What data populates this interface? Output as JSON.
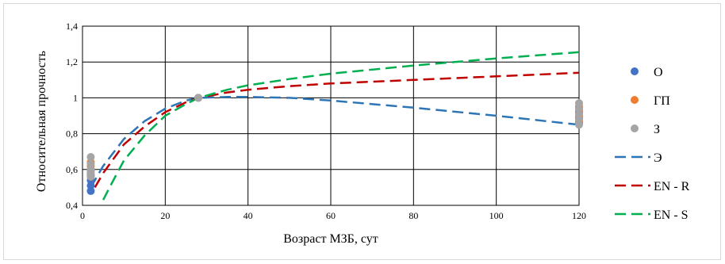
{
  "chart_data": {
    "type": "scatter",
    "xlabel": "Возраст МЗБ, сут",
    "ylabel": "Относительная прочность",
    "xlim": [
      0,
      120
    ],
    "ylim": [
      0.4,
      1.4
    ],
    "x_ticks": [
      "0",
      "20",
      "40",
      "60",
      "80",
      "100",
      "120"
    ],
    "y_ticks": [
      "0,4",
      "0,6",
      "0,8",
      "1",
      "1,2",
      "1,4"
    ],
    "grid": true,
    "legend_position": "right",
    "series": [
      {
        "name": "О",
        "kind": "points",
        "color": "#4472C4",
        "points": [
          [
            2,
            0.48
          ],
          [
            2,
            0.51
          ],
          [
            2,
            0.54
          ],
          [
            2,
            0.57
          ],
          [
            2,
            0.6
          ],
          [
            28,
            1.0
          ],
          [
            120,
            0.86
          ],
          [
            120,
            0.89
          ],
          [
            120,
            0.92
          ],
          [
            120,
            0.95
          ]
        ]
      },
      {
        "name": "ГП",
        "kind": "points",
        "color": "#ED7D31",
        "points": [
          [
            2,
            0.56
          ],
          [
            2,
            0.59
          ],
          [
            2,
            0.62
          ],
          [
            2,
            0.64
          ],
          [
            28,
            1.0
          ],
          [
            120,
            0.87
          ],
          [
            120,
            0.9
          ],
          [
            120,
            0.93
          ],
          [
            120,
            0.95
          ]
        ]
      },
      {
        "name": "З",
        "kind": "points",
        "color": "#A5A5A5",
        "points": [
          [
            2,
            0.56
          ],
          [
            2,
            0.58
          ],
          [
            2,
            0.6
          ],
          [
            2,
            0.63
          ],
          [
            2,
            0.67
          ],
          [
            28,
            1.0
          ],
          [
            120,
            0.85
          ],
          [
            120,
            0.88
          ],
          [
            120,
            0.91
          ],
          [
            120,
            0.94
          ],
          [
            120,
            0.97
          ]
        ]
      },
      {
        "name": "Э",
        "kind": "dashed-line",
        "color": "#2E75B6",
        "points": [
          [
            2,
            0.5
          ],
          [
            5,
            0.62
          ],
          [
            10,
            0.77
          ],
          [
            15,
            0.87
          ],
          [
            20,
            0.94
          ],
          [
            25,
            0.985
          ],
          [
            28,
            1.0
          ],
          [
            35,
            1.005
          ],
          [
            40,
            1.005
          ],
          [
            50,
            1.0
          ],
          [
            60,
            0.985
          ],
          [
            80,
            0.945
          ],
          [
            100,
            0.9
          ],
          [
            120,
            0.85
          ]
        ]
      },
      {
        "name": "EN - R",
        "kind": "dashed-line",
        "color": "#C00000",
        "points": [
          [
            3,
            0.5
          ],
          [
            5,
            0.58
          ],
          [
            10,
            0.74
          ],
          [
            15,
            0.84
          ],
          [
            20,
            0.92
          ],
          [
            25,
            0.975
          ],
          [
            28,
            1.0
          ],
          [
            35,
            1.03
          ],
          [
            40,
            1.045
          ],
          [
            50,
            1.065
          ],
          [
            60,
            1.08
          ],
          [
            80,
            1.1
          ],
          [
            100,
            1.12
          ],
          [
            120,
            1.14
          ]
        ]
      },
      {
        "name": "EN - S",
        "kind": "dashed-line",
        "color": "#00B050",
        "points": [
          [
            5,
            0.43
          ],
          [
            7,
            0.52
          ],
          [
            10,
            0.65
          ],
          [
            15,
            0.79
          ],
          [
            20,
            0.9
          ],
          [
            25,
            0.965
          ],
          [
            28,
            1.0
          ],
          [
            35,
            1.045
          ],
          [
            40,
            1.07
          ],
          [
            50,
            1.105
          ],
          [
            60,
            1.135
          ],
          [
            80,
            1.18
          ],
          [
            100,
            1.22
          ],
          [
            120,
            1.255
          ]
        ]
      }
    ]
  }
}
